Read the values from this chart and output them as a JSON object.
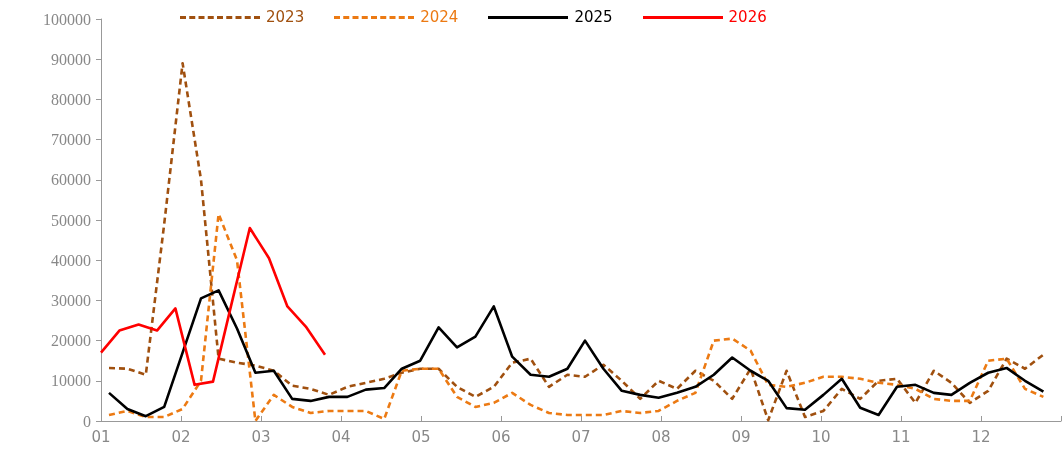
{
  "chart_data": {
    "type": "line",
    "legend": "top",
    "grid": false,
    "marker": "none",
    "x": [
      1.1,
      1.33,
      1.56,
      1.79,
      2.02,
      2.25,
      2.47,
      2.7,
      2.93,
      3.16,
      3.39,
      3.62,
      3.85,
      4.08,
      4.31,
      4.54,
      4.76,
      4.99,
      5.22,
      5.45,
      5.68,
      5.91,
      6.14,
      6.37,
      6.6,
      6.83,
      7.05,
      7.28,
      7.51,
      7.74,
      7.97,
      8.2,
      8.43,
      8.66,
      8.89,
      9.12,
      9.34,
      9.57,
      9.8,
      10.03,
      10.26,
      10.49,
      10.72,
      10.95,
      11.18,
      11.41,
      11.63,
      11.86,
      12.09,
      12.32,
      12.55,
      12.78
    ],
    "xlim": [
      1,
      13
    ],
    "xticks": [
      {
        "value": 1,
        "label": "01"
      },
      {
        "value": 2,
        "label": "02"
      },
      {
        "value": 3,
        "label": "03"
      },
      {
        "value": 4,
        "label": "04"
      },
      {
        "value": 5,
        "label": "05"
      },
      {
        "value": 6,
        "label": "06"
      },
      {
        "value": 7,
        "label": "07"
      },
      {
        "value": 8,
        "label": "08"
      },
      {
        "value": 9,
        "label": "09"
      },
      {
        "value": 10,
        "label": "10"
      },
      {
        "value": 11,
        "label": "11"
      },
      {
        "value": 12,
        "label": "12"
      },
      {
        "value": 13,
        "label": null
      }
    ],
    "ylim": [
      0,
      100000
    ],
    "yticks": [
      0,
      10000,
      20000,
      30000,
      40000,
      50000,
      60000,
      70000,
      80000,
      90000,
      100000
    ],
    "series": [
      {
        "name": "2023",
        "color": "#a0500f",
        "line_style": "dashed",
        "values": [
          13200,
          13000,
          11500,
          49000,
          89000,
          60000,
          15500,
          14500,
          13800,
          12500,
          8800,
          8000,
          6500,
          8500,
          9500,
          10500,
          12000,
          13000,
          13000,
          8500,
          6000,
          8500,
          14500,
          15500,
          8500,
          11500,
          11000,
          14000,
          10000,
          5500,
          10000,
          8000,
          12500,
          10000,
          5500,
          13000,
          200,
          12500,
          1000,
          2500,
          8000,
          5500,
          10000,
          10500,
          4500,
          12500,
          9500,
          4500,
          7500,
          15500,
          13000,
          16500
        ]
      },
      {
        "name": "2024",
        "color": "#ec7a13",
        "line_style": "dashed",
        "values": [
          1500,
          2500,
          1000,
          1000,
          3000,
          10000,
          51500,
          40000,
          0,
          6500,
          3500,
          2000,
          2500,
          2500,
          2500,
          500,
          12500,
          13000,
          13000,
          6000,
          3500,
          4500,
          7000,
          4000,
          2000,
          1500,
          1500,
          1500,
          2500,
          2000,
          2500,
          5000,
          7000,
          20000,
          20500,
          17500,
          9000,
          8500,
          9500,
          11000,
          11000,
          10500,
          9500,
          9000,
          8000,
          5500,
          5000,
          5000,
          15000,
          15500,
          8000,
          6000
        ]
      },
      {
        "name": "2025",
        "color": "#000000",
        "line_style": "solid",
        "values": [
          7000,
          3000,
          1200,
          3500,
          17000,
          30500,
          32500,
          23000,
          12000,
          12500,
          5500,
          5000,
          6000,
          6000,
          7800,
          8200,
          13000,
          15000,
          23300,
          18300,
          21000,
          28500,
          16000,
          11500,
          11000,
          13000,
          20000,
          13000,
          7500,
          6500,
          5800,
          7000,
          8500,
          11500,
          15800,
          12500,
          10000,
          3200,
          2800,
          6500,
          10500,
          3300,
          1500,
          8500,
          9000,
          7000,
          6500,
          9500,
          12000,
          13200,
          10000,
          7300
        ]
      },
      {
        "name": "2026",
        "color": "#ff0000",
        "line_style": "solid",
        "x": [
          1.0,
          1.23,
          1.47,
          1.7,
          1.93,
          2.17,
          2.4,
          2.63,
          2.86,
          3.1,
          3.33,
          3.56,
          3.8
        ],
        "values": [
          17000,
          22500,
          24000,
          22500,
          28000,
          9000,
          9800,
          29000,
          48000,
          40500,
          28500,
          23500,
          16500
        ]
      }
    ]
  }
}
